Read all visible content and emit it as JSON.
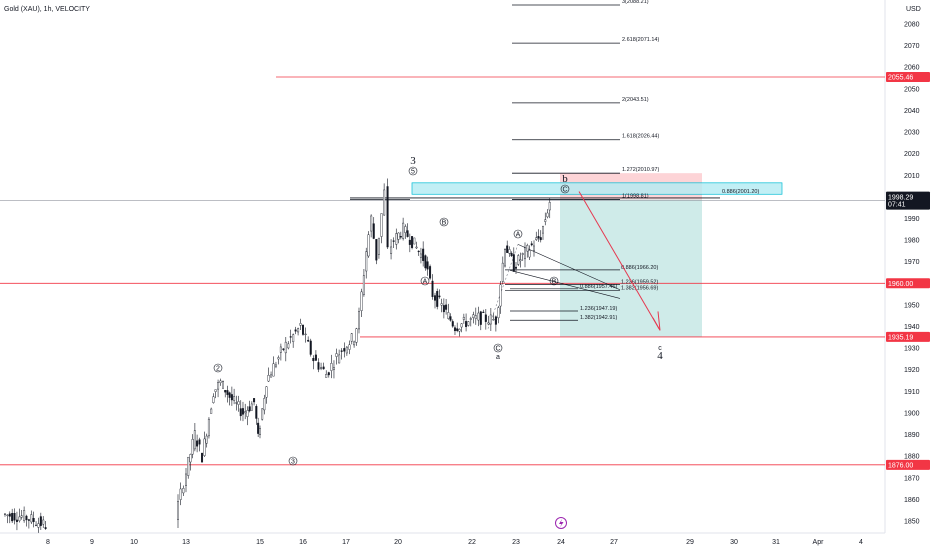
{
  "header": {
    "symbol_title": "Gold (XAU), 1h, VELOCITY",
    "currency": "USD"
  },
  "colors": {
    "candle": "#131722",
    "level_line": "#f23645",
    "target_zone": "#26a69a",
    "stop_zone": "#f7525f",
    "resistance_zone": "#22ab94",
    "arrow": "#e53950",
    "current_price_tag": "#131722"
  },
  "chart_data": {
    "type": "candlestick",
    "title": "Gold (XAU), 1h, VELOCITY",
    "y_axis": {
      "range": [
        1845,
        2092
      ],
      "ticks": [
        1850,
        1860,
        1870,
        1880,
        1890,
        1900,
        1910,
        1920,
        1930,
        1940,
        1950,
        1960,
        1970,
        1980,
        1990,
        2000,
        2010,
        2020,
        2030,
        2040,
        2050,
        2060,
        2070,
        2080
      ]
    },
    "x_axis": {
      "ticks": [
        "8",
        "9",
        "10",
        "13",
        "15",
        "16",
        "17",
        "20",
        "22",
        "23",
        "24",
        "27",
        "29",
        "30",
        "31",
        "Apr",
        "4"
      ]
    },
    "price_path": [
      [
        "7",
        1853
      ],
      [
        "7.5",
        1852
      ],
      [
        "8",
        1848
      ],
      [
        "12.8",
        1852
      ],
      [
        "13",
        1868
      ],
      [
        "13.3",
        1890
      ],
      [
        "13.5",
        1880
      ],
      [
        "13.8",
        1910
      ],
      [
        "14",
        1914
      ],
      [
        "14.3",
        1906
      ],
      [
        "14.6",
        1900
      ],
      [
        "14.9",
        1905
      ],
      [
        "15",
        1888
      ],
      [
        "15.2",
        1915
      ],
      [
        "15.6",
        1930
      ],
      [
        "16",
        1940
      ],
      [
        "16.3",
        1925
      ],
      [
        "16.6",
        1918
      ],
      [
        "16.9",
        1928
      ],
      [
        "17.2",
        1932
      ],
      [
        "17.6",
        1935
      ],
      [
        "17.9",
        1945
      ],
      [
        "18.3",
        1975
      ],
      [
        "18.6",
        1990
      ],
      [
        "18.9",
        1972
      ],
      [
        "19.2",
        1992
      ],
      [
        "19.4",
        2002
      ],
      [
        "19.6",
        1975
      ],
      [
        "19.9",
        1980
      ],
      [
        "20.2",
        1985
      ],
      [
        "20.5",
        1978
      ],
      [
        "20.8",
        1970
      ],
      [
        "21",
        1955
      ],
      [
        "21.3",
        1948
      ],
      [
        "21.6",
        1940
      ],
      [
        "21.9",
        1942
      ],
      [
        "22.2",
        1944
      ],
      [
        "22.6",
        1943
      ],
      [
        "22.8",
        1978
      ],
      [
        "23",
        1968
      ],
      [
        "23.3",
        1975
      ],
      [
        "23.6",
        1982
      ],
      [
        "23.8",
        1998
      ]
    ],
    "horizontal_levels": [
      {
        "price": 2055.46,
        "label": "2055.46"
      },
      {
        "price": 1960.0,
        "label": "1960.00"
      },
      {
        "price": 1935.19,
        "label": "1935.19"
      },
      {
        "price": 1876.0,
        "label": "1876.00"
      }
    ],
    "current_price": {
      "price": 1998.29,
      "label": "1998.29",
      "countdown": "07:41"
    },
    "fib_extension_levels": [
      {
        "price": 2088.21,
        "label": "3(2088.21)"
      },
      {
        "price": 2071.14,
        "label": "2.618(2071.14)"
      },
      {
        "price": 2043.51,
        "label": "2(2043.51)"
      },
      {
        "price": 2026.44,
        "label": "1.618(2026.44)"
      },
      {
        "price": 2010.97,
        "label": "1.272(2010.97)"
      },
      {
        "price": 1998.81,
        "label": "1(1998.81)"
      }
    ],
    "fib_retracement_levels": [
      {
        "price": 1966.2,
        "label": "0.886(1966.20)"
      },
      {
        "price": 1959.52,
        "label": "1.236(1959.52)"
      },
      {
        "price": 1957.46,
        "label": "0.886(1957.46)"
      },
      {
        "price": 1956.69,
        "label": "1.382(1956.69)"
      },
      {
        "price": 1947.19,
        "label": "1.236(1947.19)"
      },
      {
        "price": 1942.91,
        "label": "1.382(1942.91)"
      }
    ],
    "zone_label": "0.886(2001.20)",
    "wave_labels": [
      "3",
      "5",
      "b",
      "C",
      "B",
      "A",
      "A",
      "B",
      "C",
      "a",
      "2",
      "3",
      "4",
      "c",
      "4"
    ],
    "position_tool": {
      "entry": 1998.8,
      "stop": 2010.97,
      "target": 1935.19
    }
  }
}
